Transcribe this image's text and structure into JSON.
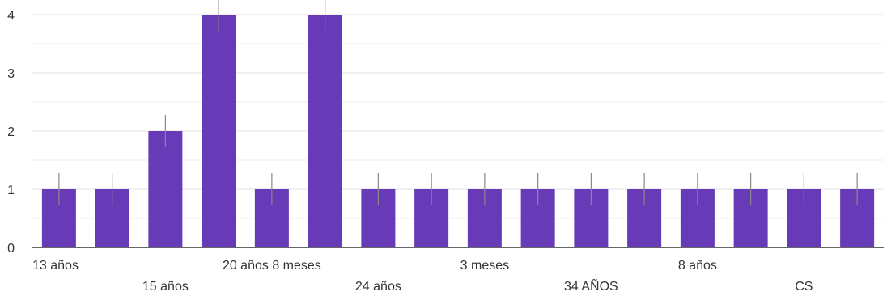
{
  "chart_data": {
    "type": "bar",
    "categories": [
      "13 años",
      "",
      "15 años",
      "",
      "20 años 8 meses",
      "",
      "24 años",
      "",
      "3 meses",
      "",
      "34 AÑOS",
      "",
      "8 años",
      "",
      "CS",
      ""
    ],
    "values": [
      1,
      1,
      2,
      4,
      1,
      4,
      1,
      1,
      1,
      1,
      1,
      1,
      1,
      1,
      1,
      1
    ],
    "ylim": [
      0,
      4
    ],
    "yticks": [
      "0",
      "1",
      "2",
      "3",
      "4"
    ],
    "grid": true,
    "colors": {
      "bar": "#673ab7",
      "grid": "#e6e6e6",
      "axis": "#333333",
      "errbar": "#888888"
    }
  }
}
